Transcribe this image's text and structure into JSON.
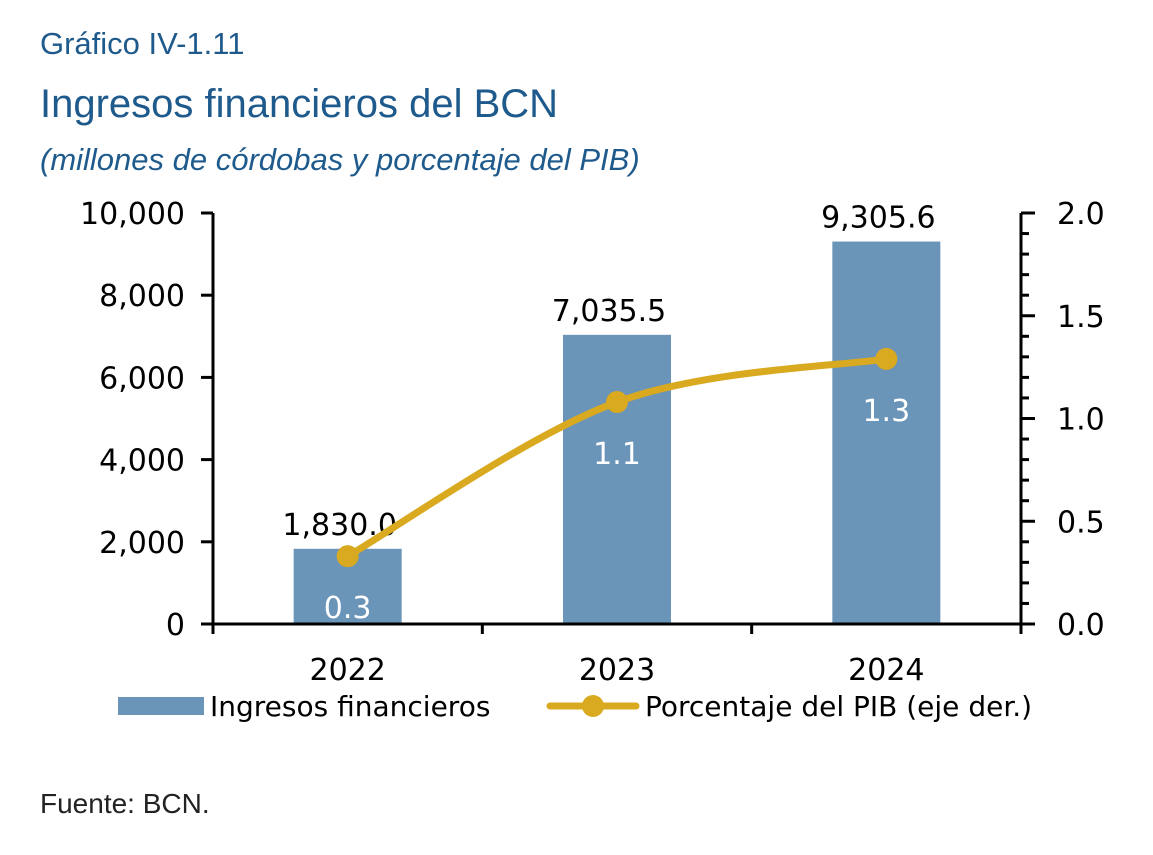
{
  "header": {
    "number": "Gráfico IV-1.11",
    "title": "Ingresos financieros del BCN",
    "subtitle": "(millones de córdobas y porcentaje del PIB)"
  },
  "source": "Fuente: BCN.",
  "chart_data": {
    "type": "bar",
    "categories": [
      "2022",
      "2023",
      "2024"
    ],
    "series": [
      {
        "name": "Ingresos financieros",
        "type": "bar",
        "axis": "left",
        "color": "#6a94b8",
        "values": [
          1830.0,
          7035.5,
          9305.6
        ],
        "labels": [
          "1,830.0",
          "7,035.5",
          "9,305.6"
        ]
      },
      {
        "name": "Porcentaje del PIB (eje der.)",
        "type": "line",
        "axis": "right",
        "color": "#d9a91f",
        "values": [
          0.33,
          1.08,
          1.29
        ],
        "labels": [
          "0.3",
          "1.1",
          "1.3"
        ]
      }
    ],
    "y_left": {
      "min": 0,
      "max": 10000,
      "ticks": [
        0,
        2000,
        4000,
        6000,
        8000,
        10000
      ],
      "tick_labels": [
        "0",
        "2,000",
        "4,000",
        "6,000",
        "8,000",
        "10,000"
      ]
    },
    "y_right": {
      "min": 0,
      "max": 2.0,
      "ticks": [
        0,
        0.5,
        1.0,
        1.5,
        2.0
      ],
      "tick_labels": [
        "0.0",
        "0.5",
        "1.0",
        "1.5",
        "2.0"
      ]
    },
    "grid": false,
    "legend": "bottom"
  }
}
